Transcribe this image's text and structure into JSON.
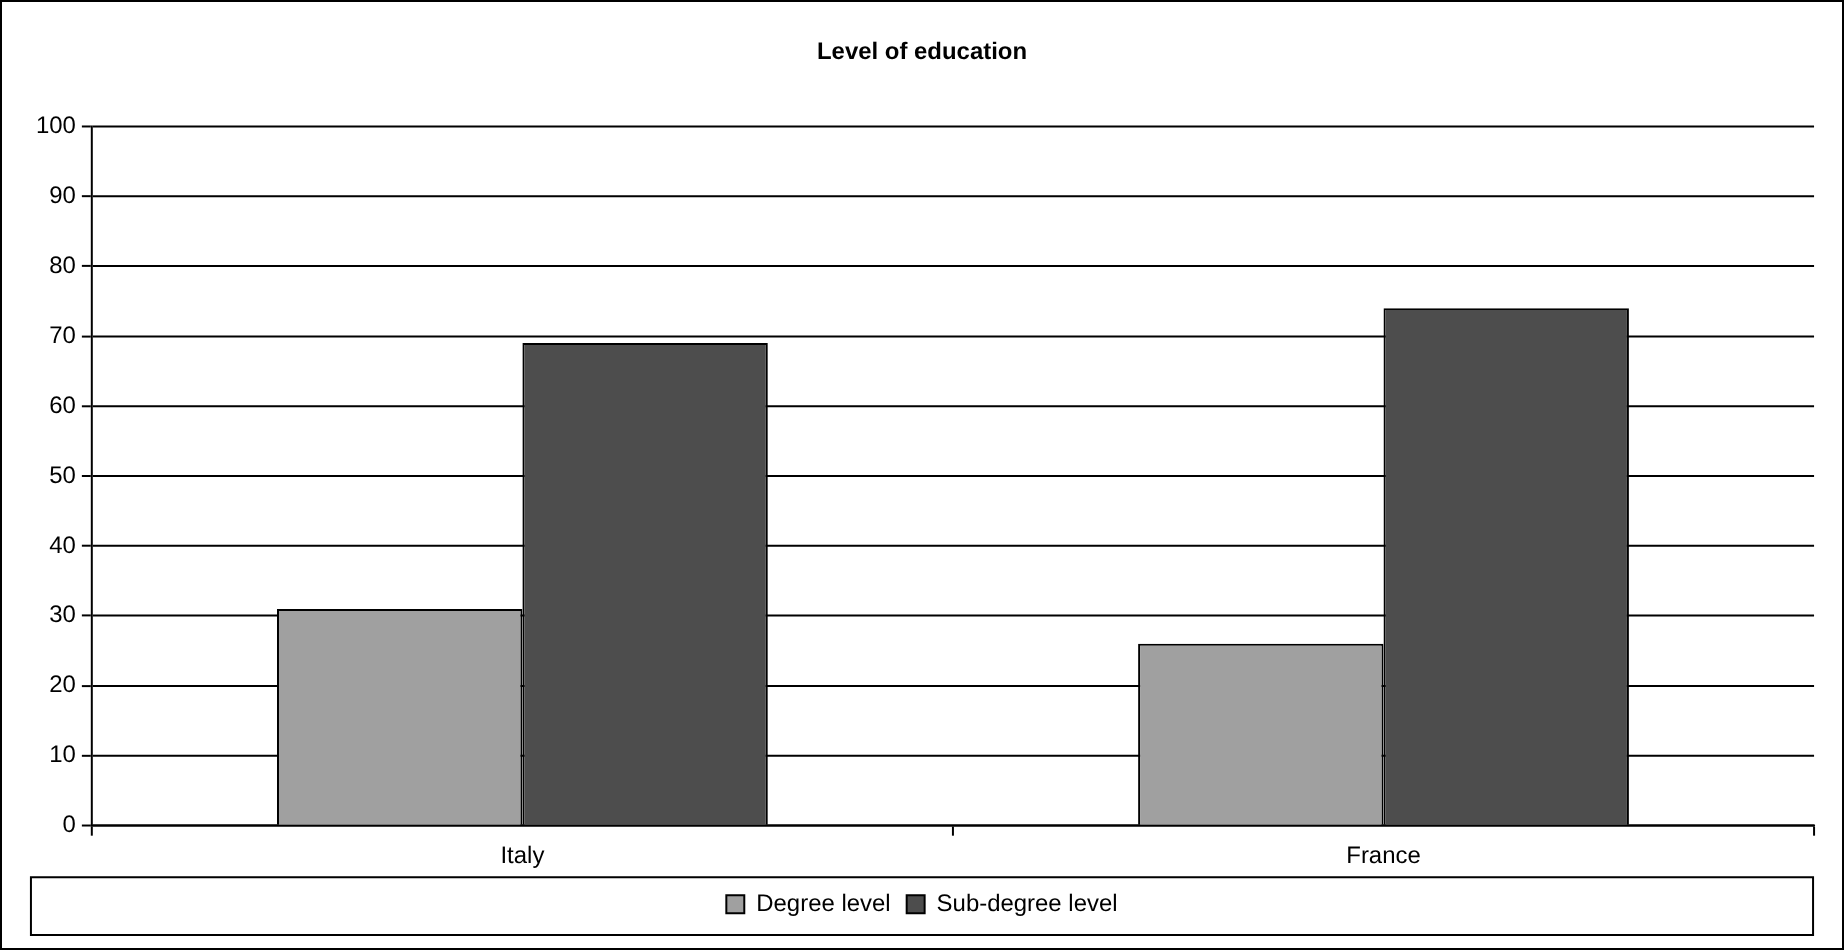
{
  "chart_data": {
    "type": "bar",
    "title": "Level of education",
    "categories": [
      "Italy",
      "France"
    ],
    "series": [
      {
        "name": "Degree level",
        "color": "#a0a0a0",
        "values": [
          31,
          26
        ]
      },
      {
        "name": "Sub-degree level",
        "color": "#4d4d4d",
        "values": [
          69,
          74
        ]
      }
    ],
    "ylim": [
      0,
      100
    ],
    "yticks": [
      0,
      10,
      20,
      30,
      40,
      50,
      60,
      70,
      80,
      90,
      100
    ],
    "grid": "y",
    "legend": "bottom"
  }
}
